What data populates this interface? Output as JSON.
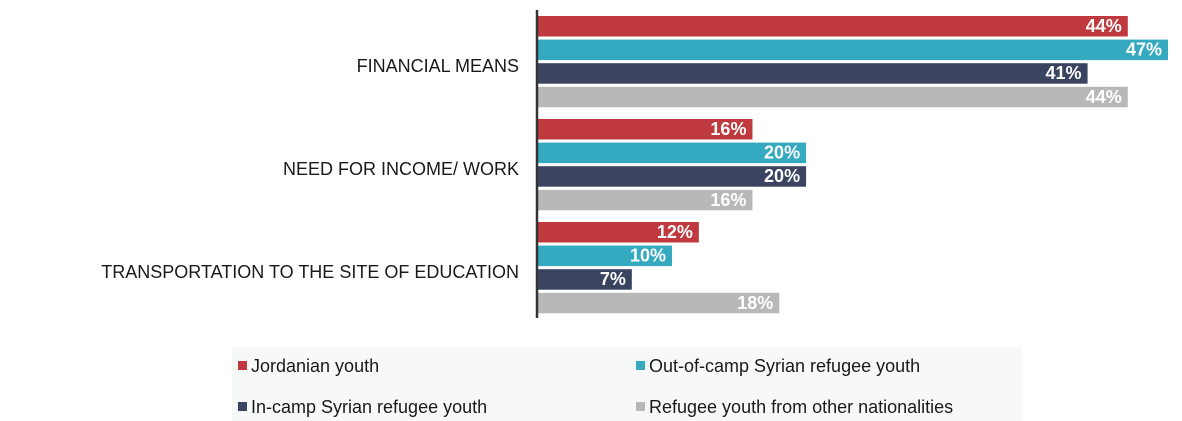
{
  "chart_data": {
    "type": "bar",
    "orientation": "horizontal",
    "categories": [
      "FINANCIAL MEANS",
      "NEED FOR INCOME/ WORK",
      "TRANSPORTATION TO THE SITE OF EDUCATION"
    ],
    "series": [
      {
        "name": "Jordanian youth",
        "color": "#c0393f",
        "values": [
          44,
          16,
          12
        ]
      },
      {
        "name": "Out-of-camp Syrian refugee youth",
        "color": "#35a9c0",
        "values": [
          47,
          20,
          10
        ]
      },
      {
        "name": "In-camp Syrian refugee youth",
        "color": "#3a4360",
        "values": [
          41,
          20,
          7
        ]
      },
      {
        "name": "Refugee youth from other nationalities",
        "color": "#b8b8b8",
        "values": [
          44,
          16,
          18
        ]
      }
    ],
    "value_suffix": "%",
    "xlim": [
      0,
      47
    ],
    "grid": false,
    "legend_position": "bottom"
  }
}
